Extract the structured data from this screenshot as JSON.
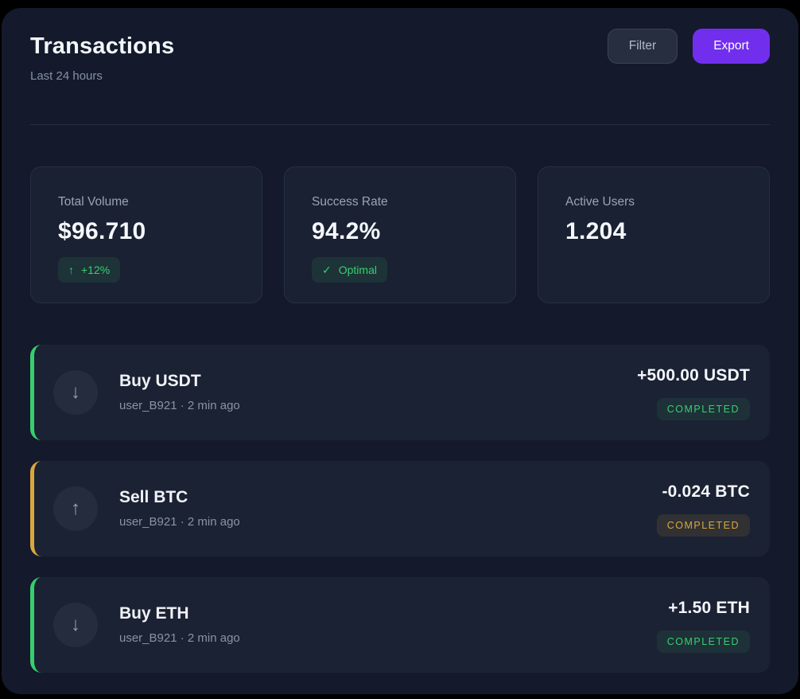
{
  "header": {
    "title": "Transactions",
    "subtitle": "Last 24 hours",
    "filter_label": "Filter",
    "export_label": "Export"
  },
  "stats": [
    {
      "label": "Total Volume",
      "value": "$96.710",
      "badge": {
        "icon": "arrow-up-icon",
        "glyph": "↑",
        "text": "+12%"
      }
    },
    {
      "label": "Success Rate",
      "value": "94.2%",
      "badge": {
        "icon": "check-icon",
        "glyph": "✓",
        "text": "Optimal"
      }
    },
    {
      "label": "Active Users",
      "value": "1.204"
    }
  ],
  "transactions": [
    {
      "title": "Buy USDT",
      "meta": "user_B921 · 2 min ago",
      "amount": "+500.00 USDT",
      "status": "COMPLETED",
      "direction": "in",
      "icon": "arrow-down-icon",
      "glyph": "↓",
      "accent": "green"
    },
    {
      "title": "Sell BTC",
      "meta": "user_B921 · 2 min ago",
      "amount": "-0.024 BTC",
      "status": "COMPLETED",
      "direction": "out",
      "icon": "arrow-up-icon",
      "glyph": "↑",
      "accent": "amber"
    },
    {
      "title": "Buy ETH",
      "meta": "user_B921 · 2 min ago",
      "amount": "+1.50 ETH",
      "status": "COMPLETED",
      "direction": "in",
      "icon": "arrow-down-icon",
      "glyph": "↓",
      "accent": "green"
    }
  ],
  "colors": {
    "accent_green": "#37cf6e",
    "accent_amber": "#d8a83e",
    "export_purple": "#712fed",
    "page_bg": "#141a2b",
    "card_bg": "#1a2132",
    "row_bg": "#1b2233"
  }
}
